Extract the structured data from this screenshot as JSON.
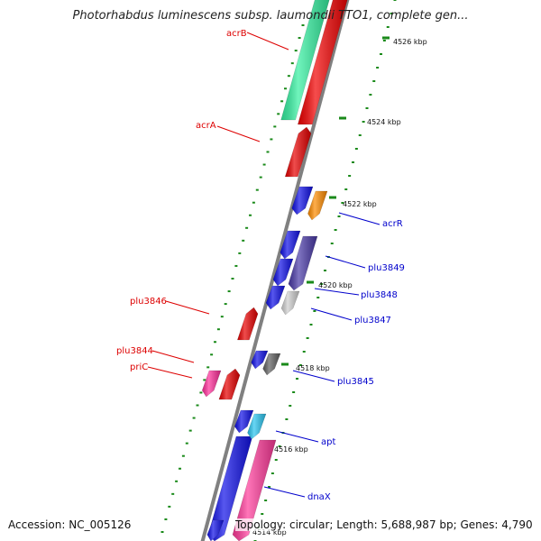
{
  "title": "Photorhabdus luminescens subsp. laumondii TTO1, complete gen...",
  "footer": {
    "accession": "Accession: NC_005126",
    "summary": "Topology: circular; Length: 5,688,987 bp; Genes: 4,790"
  },
  "scale": {
    "unit": "kbp",
    "major_ticks": [
      "4526 kbp",
      "4524 kbp",
      "4522 kbp",
      "4520 kbp",
      "4518 kbp",
      "4516 kbp",
      "4514 kbp"
    ]
  },
  "colors": {
    "backbone": "#808080",
    "tick": "#1a8a1a",
    "forward_label": "#dd0000",
    "reverse_label": "#0000cc"
  },
  "genes": {
    "forward": [
      "acrB",
      "acrA",
      "plu3846",
      "plu3844",
      "priC"
    ],
    "reverse": [
      "acrR",
      "plu3849",
      "plu3848",
      "plu3847",
      "plu3845",
      "apt",
      "dnaX"
    ]
  }
}
